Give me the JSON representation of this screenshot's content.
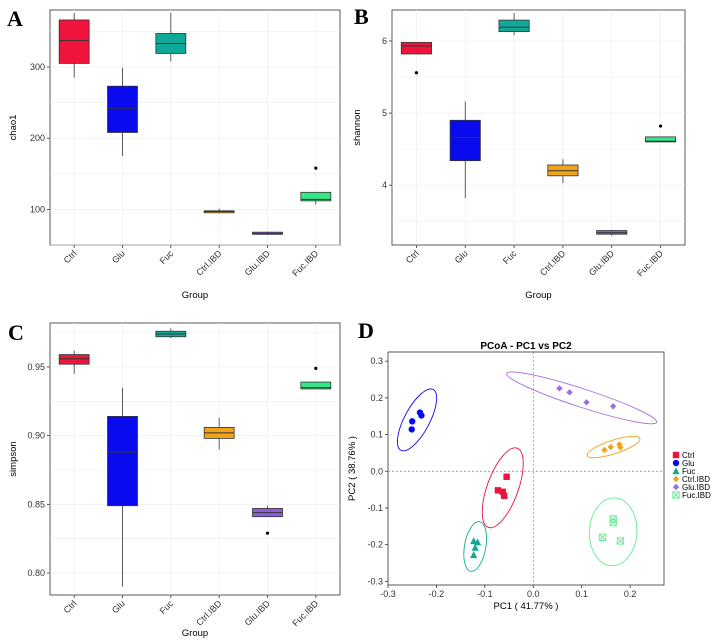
{
  "chart_data": [
    {
      "panel": "A",
      "type": "boxplot",
      "xlabel": "Group",
      "ylabel": "chao1",
      "ylim": [
        50,
        380
      ],
      "yticks": [
        100,
        200,
        300
      ],
      "grid": true,
      "categories": [
        "Ctrl",
        "Glu",
        "Fuc",
        "Ctrl.IBD",
        "Glu.IBD",
        "Fuc.IBD"
      ],
      "colors": [
        "#f0143c",
        "#0a0aee",
        "#0fa99a",
        "#f0a41a",
        "#8e5bd9",
        "#34e888"
      ],
      "boxes": [
        {
          "min": 285,
          "q1": 305,
          "median": 337,
          "q3": 366,
          "max": 376,
          "outliers": []
        },
        {
          "min": 175,
          "q1": 208,
          "median": 242,
          "q3": 273,
          "max": 299,
          "outliers": []
        },
        {
          "min": 308,
          "q1": 319,
          "median": 333,
          "q3": 347,
          "max": 376,
          "outliers": []
        },
        {
          "min": 95,
          "q1": 96,
          "median": 97,
          "q3": 98,
          "max": 101,
          "outliers": []
        },
        {
          "min": 64,
          "q1": 65,
          "median": 66,
          "q3": 68,
          "max": 69,
          "outliers": []
        },
        {
          "min": 107,
          "q1": 112,
          "median": 114,
          "q3": 124,
          "max": 124,
          "outliers": [
            158
          ]
        }
      ]
    },
    {
      "panel": "B",
      "type": "boxplot",
      "xlabel": "Group",
      "ylabel": "shannon",
      "ylim": [
        3.17,
        6.43
      ],
      "yticks": [
        4,
        5,
        6
      ],
      "grid": true,
      "categories": [
        "Ctrl",
        "Glu",
        "Fuc",
        "Ctrl.IBD",
        "Glu.IBD",
        "Fuc.IBD"
      ],
      "colors": [
        "#f0143c",
        "#0a0aee",
        "#0fa99a",
        "#f0a41a",
        "#8e5bd9",
        "#34e888"
      ],
      "boxes": [
        {
          "min": 5.82,
          "q1": 5.82,
          "median": 5.93,
          "q3": 5.98,
          "max": 5.98,
          "outliers": [
            5.56
          ]
        },
        {
          "min": 3.82,
          "q1": 4.34,
          "median": 4.66,
          "q3": 4.9,
          "max": 5.16,
          "outliers": []
        },
        {
          "min": 6.08,
          "q1": 6.13,
          "median": 6.19,
          "q3": 6.29,
          "max": 6.39,
          "outliers": []
        },
        {
          "min": 4.03,
          "q1": 4.13,
          "median": 4.2,
          "q3": 4.28,
          "max": 4.36,
          "outliers": []
        },
        {
          "min": 3.3,
          "q1": 3.32,
          "median": 3.34,
          "q3": 3.37,
          "max": 3.38,
          "outliers": []
        },
        {
          "min": 4.6,
          "q1": 4.6,
          "median": 4.61,
          "q3": 4.67,
          "max": 4.67,
          "outliers": [
            4.82
          ]
        }
      ]
    },
    {
      "panel": "C",
      "type": "boxplot",
      "xlabel": "Group",
      "ylabel": "simpson",
      "ylim": [
        0.784,
        0.982
      ],
      "yticks": [
        0.8,
        0.85,
        0.9,
        0.95
      ],
      "grid": true,
      "categories": [
        "Ctrl",
        "Glu",
        "Fuc",
        "Ctrl.IBD",
        "Glu.IBD",
        "Fuc.IBD"
      ],
      "colors": [
        "#f0143c",
        "#0a0aee",
        "#0fa99a",
        "#f0a41a",
        "#8e5bd9",
        "#34e888"
      ],
      "boxes": [
        {
          "min": 0.945,
          "q1": 0.952,
          "median": 0.956,
          "q3": 0.959,
          "max": 0.962,
          "outliers": []
        },
        {
          "min": 0.79,
          "q1": 0.849,
          "median": 0.888,
          "q3": 0.914,
          "max": 0.935,
          "outliers": []
        },
        {
          "min": 0.971,
          "q1": 0.972,
          "median": 0.974,
          "q3": 0.976,
          "max": 0.978,
          "outliers": []
        },
        {
          "min": 0.89,
          "q1": 0.898,
          "median": 0.902,
          "q3": 0.906,
          "max": 0.913,
          "outliers": []
        },
        {
          "min": 0.841,
          "q1": 0.841,
          "median": 0.844,
          "q3": 0.847,
          "max": 0.849,
          "outliers": [
            0.829
          ]
        },
        {
          "min": 0.934,
          "q1": 0.934,
          "median": 0.935,
          "q3": 0.939,
          "max": 0.939,
          "outliers": [
            0.949
          ]
        }
      ]
    },
    {
      "panel": "D",
      "type": "scatter",
      "title": "PCoA - PC1 vs PC2",
      "xlabel": "PC1 ( 41.77% )",
      "ylabel": "PC2 ( 38.76% )",
      "xlim": [
        -0.3,
        0.27
      ],
      "ylim": [
        -0.31,
        0.325
      ],
      "xticks": [
        -0.3,
        -0.2,
        -0.1,
        0.0,
        0.1,
        0.2
      ],
      "yticks": [
        -0.3,
        -0.2,
        -0.1,
        0.0,
        0.1,
        0.2,
        0.3
      ],
      "grid": false,
      "reference_lines": {
        "x": 0,
        "y": 0
      },
      "legend_position": "right",
      "series": [
        {
          "name": "Ctrl",
          "color": "#e8143c",
          "marker": "square",
          "points": [
            [
              -0.055,
              -0.015
            ],
            [
              -0.073,
              -0.052
            ],
            [
              -0.063,
              -0.056
            ],
            [
              -0.06,
              -0.067
            ]
          ],
          "ellipse": {
            "cx": -0.063,
            "cy": -0.045,
            "rx": 0.087,
            "ry": 0.032,
            "angle": 70
          }
        },
        {
          "name": "Glu",
          "color": "#0a0aee",
          "marker": "circle",
          "points": [
            [
              -0.234,
              0.16
            ],
            [
              -0.231,
              0.152
            ],
            [
              -0.25,
              0.136
            ],
            [
              -0.251,
              0.114
            ]
          ],
          "ellipse": {
            "cx": -0.24,
            "cy": 0.14,
            "rx": 0.071,
            "ry": 0.026,
            "angle": 62
          }
        },
        {
          "name": "Fuc",
          "color": "#0fa99a",
          "marker": "triangle",
          "points": [
            [
              -0.123,
              -0.19
            ],
            [
              -0.115,
              -0.193
            ],
            [
              -0.12,
              -0.208
            ],
            [
              -0.123,
              -0.228
            ]
          ],
          "ellipse": {
            "cx": -0.12,
            "cy": -0.205,
            "rx": 0.052,
            "ry": 0.022,
            "angle": 80
          }
        },
        {
          "name": "Ctrl.IBD",
          "color": "#f0a41a",
          "marker": "diamond",
          "points": [
            [
              0.147,
              0.058
            ],
            [
              0.16,
              0.066
            ],
            [
              0.178,
              0.073
            ],
            [
              0.18,
              0.065
            ]
          ],
          "ellipse": {
            "cx": 0.166,
            "cy": 0.066,
            "rx": 0.057,
            "ry": 0.014,
            "angle": 18
          }
        },
        {
          "name": "Glu.IBD",
          "color": "#a16ee0",
          "marker": "diamond",
          "points": [
            [
              0.054,
              0.226
            ],
            [
              0.075,
              0.215
            ],
            [
              0.11,
              0.188
            ],
            [
              0.165,
              0.177
            ]
          ],
          "ellipse": {
            "cx": 0.1,
            "cy": 0.2,
            "rx": 0.163,
            "ry": 0.019,
            "angle": -18
          }
        },
        {
          "name": "Fuc.IBD",
          "color": "#63ed92",
          "marker": "boxx",
          "points": [
            [
              0.165,
              -0.13
            ],
            [
              0.143,
              -0.18
            ],
            [
              0.18,
              -0.19
            ],
            [
              0.165,
              -0.14
            ]
          ],
          "ellipse": {
            "cx": 0.165,
            "cy": -0.165,
            "rx": 0.07,
            "ry": 0.049,
            "angle": 87
          }
        }
      ]
    }
  ]
}
